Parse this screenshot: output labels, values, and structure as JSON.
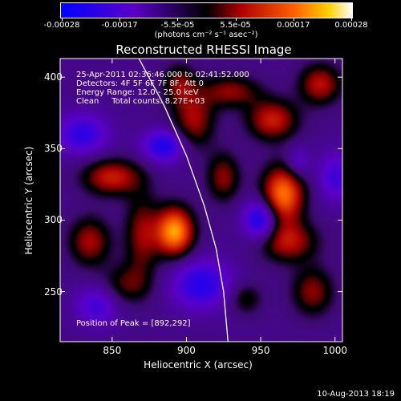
{
  "chart_data": {
    "type": "heatmap",
    "title": "Reconstructed RHESSI Image",
    "xlabel": "Heliocentric X (arcsec)",
    "ylabel": "Heliocentric Y (arcsec)",
    "xlim": [
      815,
      1005
    ],
    "ylim": [
      215,
      413
    ],
    "x_ticks": [
      850,
      900,
      950,
      1000
    ],
    "y_ticks": [
      250,
      300,
      350,
      400
    ],
    "colorbar": {
      "ticks": [
        "-0.00028",
        "-0.00017",
        "-5.5e-05",
        "5.5e-05",
        "0.00017",
        "0.00028"
      ],
      "range": [
        -0.00028,
        0.00028
      ],
      "units": "(photons cm⁻² s⁻¹ asec⁻²)"
    },
    "annotations": {
      "time_range": "25-Apr-2011 02:36:46.000 to 02:41:52.000",
      "detectors": "Detectors: 4F 5F 6F 7F 8F, Att 0",
      "energy": "Energy Range: 12.0 - 25.0 keV",
      "clean": "Clean     Total counts: 8.27E+03",
      "peak": "Position of Peak = [892,292]"
    },
    "peak_position": [
      892,
      292
    ],
    "limb_curve": [
      [
        868,
        413
      ],
      [
        885,
        380
      ],
      [
        900,
        345
      ],
      [
        912,
        310
      ],
      [
        920,
        280
      ],
      [
        925,
        250
      ],
      [
        928,
        215
      ]
    ],
    "blobs": [
      {
        "x": 892,
        "y": 292,
        "sx": 9,
        "sy": 12,
        "amp": 1.0
      },
      {
        "x": 965,
        "y": 318,
        "sx": 10,
        "sy": 14,
        "amp": 0.9
      },
      {
        "x": 968,
        "y": 285,
        "sx": 14,
        "sy": 10,
        "amp": 0.55
      },
      {
        "x": 958,
        "y": 370,
        "sx": 12,
        "sy": 10,
        "amp": 0.6
      },
      {
        "x": 930,
        "y": 390,
        "sx": 14,
        "sy": 8,
        "amp": 0.45
      },
      {
        "x": 990,
        "y": 395,
        "sx": 10,
        "sy": 10,
        "amp": 0.55
      },
      {
        "x": 850,
        "y": 330,
        "sx": 14,
        "sy": 9,
        "amp": 0.6
      },
      {
        "x": 870,
        "y": 290,
        "sx": 8,
        "sy": 20,
        "amp": 0.45
      },
      {
        "x": 835,
        "y": 285,
        "sx": 10,
        "sy": 12,
        "amp": 0.5
      },
      {
        "x": 905,
        "y": 370,
        "sx": 10,
        "sy": 14,
        "amp": 0.5
      },
      {
        "x": 925,
        "y": 330,
        "sx": 8,
        "sy": 12,
        "amp": 0.45
      },
      {
        "x": 860,
        "y": 255,
        "sx": 12,
        "sy": 10,
        "amp": 0.35
      },
      {
        "x": 985,
        "y": 250,
        "sx": 10,
        "sy": 12,
        "amp": 0.45
      },
      {
        "x": 940,
        "y": 245,
        "sx": 8,
        "sy": 8,
        "amp": 0.3
      },
      {
        "x": 895,
        "y": 395,
        "sx": 8,
        "sy": 10,
        "amp": 0.4
      },
      {
        "x": 885,
        "y": 352,
        "sx": 10,
        "sy": 8,
        "amp": -0.6
      },
      {
        "x": 950,
        "y": 300,
        "sx": 8,
        "sy": 10,
        "amp": -0.7
      },
      {
        "x": 910,
        "y": 255,
        "sx": 14,
        "sy": 12,
        "amp": -0.55
      },
      {
        "x": 830,
        "y": 360,
        "sx": 12,
        "sy": 10,
        "amp": -0.5
      },
      {
        "x": 975,
        "y": 340,
        "sx": 6,
        "sy": 8,
        "amp": -0.3
      },
      {
        "x": 1000,
        "y": 330,
        "sx": 8,
        "sy": 12,
        "amp": -0.4
      },
      {
        "x": 840,
        "y": 240,
        "sx": 10,
        "sy": 10,
        "amp": -0.4
      }
    ],
    "background": -0.25
  },
  "footer": {
    "date": "10-Aug-2013 18:19"
  }
}
